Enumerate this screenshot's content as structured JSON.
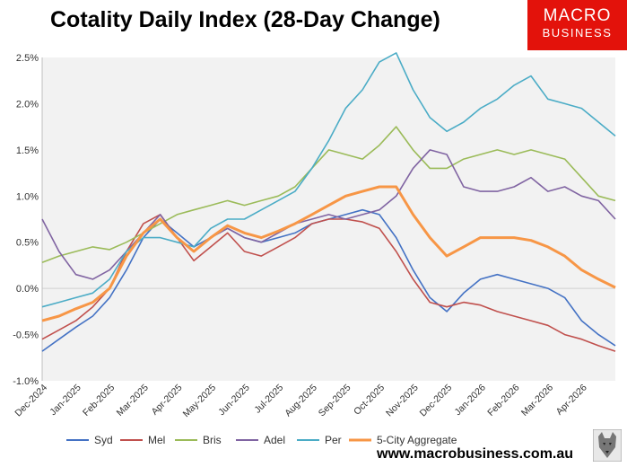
{
  "header": {
    "title": "Cotality Daily Index (28-Day Change)"
  },
  "logo": {
    "line1": "MACRO",
    "line2": "BUSINESS"
  },
  "footer": {
    "url": "www.macrobusiness.com.au"
  },
  "chart_data": {
    "type": "line",
    "title": "Cotality Daily Index (28-Day Change)",
    "xlabel": "",
    "ylabel": "",
    "ylim": [
      -1.0,
      2.5
    ],
    "y_ticks": [
      -1.0,
      -0.5,
      0.0,
      0.5,
      1.0,
      1.5,
      2.0,
      2.5
    ],
    "y_tick_labels": [
      "-1.0%",
      "-0.5%",
      "0.0%",
      "0.5%",
      "1.0%",
      "1.5%",
      "2.0%",
      "2.5%"
    ],
    "x_ticks": [
      "Dec-2024",
      "Jan-2025",
      "Feb-2025",
      "Mar-2025",
      "Apr-2025",
      "May-2025",
      "Jun-2025",
      "Jul-2025",
      "Aug-2025",
      "Sep-2025",
      "Oct-2025",
      "Nov-2025",
      "Dec-2025",
      "Jan-2026",
      "Feb-2026",
      "Mar-2026",
      "Apr-2026"
    ],
    "grid": false,
    "background": "#f2f2f2",
    "legend_position": "bottom",
    "x": [
      "Dec-2024",
      "Dec-2024",
      "Jan-2025",
      "Jan-2025",
      "Feb-2025",
      "Feb-2025",
      "Mar-2025",
      "Mar-2025",
      "Apr-2025",
      "Apr-2025",
      "May-2025",
      "May-2025",
      "Jun-2025",
      "Jun-2025",
      "Jul-2025",
      "Jul-2025",
      "Aug-2025",
      "Aug-2025",
      "Sep-2025",
      "Sep-2025",
      "Oct-2025",
      "Oct-2025",
      "Nov-2025",
      "Nov-2025",
      "Dec-2025",
      "Dec-2025",
      "Jan-2026",
      "Jan-2026",
      "Feb-2026",
      "Feb-2026",
      "Mar-2026",
      "Mar-2026",
      "Apr-2026",
      "Apr-2026",
      "Apr-2026"
    ],
    "series": [
      {
        "name": "Syd",
        "color": "#4472c4",
        "values": [
          -0.68,
          -0.55,
          -0.42,
          -0.3,
          -0.1,
          0.2,
          0.55,
          0.75,
          0.6,
          0.45,
          0.55,
          0.65,
          0.55,
          0.5,
          0.55,
          0.6,
          0.7,
          0.75,
          0.8,
          0.85,
          0.8,
          0.55,
          0.2,
          -0.1,
          -0.25,
          -0.05,
          0.1,
          0.15,
          0.1,
          0.05,
          0.0,
          -0.1,
          -0.35,
          -0.5,
          -0.62
        ]
      },
      {
        "name": "Mel",
        "color": "#c0504d",
        "values": [
          -0.55,
          -0.45,
          -0.35,
          -0.2,
          0.0,
          0.4,
          0.7,
          0.8,
          0.55,
          0.3,
          0.45,
          0.6,
          0.4,
          0.35,
          0.45,
          0.55,
          0.7,
          0.75,
          0.75,
          0.72,
          0.65,
          0.4,
          0.1,
          -0.15,
          -0.2,
          -0.15,
          -0.18,
          -0.25,
          -0.3,
          -0.35,
          -0.4,
          -0.5,
          -0.55,
          -0.62,
          -0.68
        ]
      },
      {
        "name": "Bris",
        "color": "#9bbb59",
        "values": [
          0.28,
          0.35,
          0.4,
          0.45,
          0.42,
          0.5,
          0.6,
          0.7,
          0.8,
          0.85,
          0.9,
          0.95,
          0.9,
          0.95,
          1.0,
          1.1,
          1.3,
          1.5,
          1.45,
          1.4,
          1.55,
          1.75,
          1.5,
          1.3,
          1.3,
          1.4,
          1.45,
          1.5,
          1.45,
          1.5,
          1.45,
          1.4,
          1.2,
          1.0,
          0.95
        ]
      },
      {
        "name": "Adel",
        "color": "#8064a2",
        "values": [
          0.75,
          0.4,
          0.15,
          0.1,
          0.2,
          0.4,
          0.6,
          0.8,
          0.55,
          0.4,
          0.55,
          0.65,
          0.55,
          0.5,
          0.6,
          0.7,
          0.75,
          0.8,
          0.75,
          0.8,
          0.85,
          1.0,
          1.3,
          1.5,
          1.45,
          1.1,
          1.05,
          1.05,
          1.1,
          1.2,
          1.05,
          1.1,
          1.0,
          0.95,
          0.75
        ]
      },
      {
        "name": "Per",
        "color": "#4bacc6",
        "values": [
          -0.2,
          -0.15,
          -0.1,
          -0.05,
          0.1,
          0.4,
          0.55,
          0.55,
          0.5,
          0.45,
          0.65,
          0.75,
          0.75,
          0.85,
          0.95,
          1.05,
          1.3,
          1.6,
          1.95,
          2.15,
          2.45,
          2.55,
          2.15,
          1.85,
          1.7,
          1.8,
          1.95,
          2.05,
          2.2,
          2.3,
          2.05,
          2.0,
          1.95,
          1.8,
          1.65
        ]
      },
      {
        "name": "5-City Aggregate",
        "color": "#f79646",
        "values": [
          -0.35,
          -0.3,
          -0.22,
          -0.15,
          0.0,
          0.35,
          0.6,
          0.75,
          0.55,
          0.4,
          0.55,
          0.68,
          0.6,
          0.55,
          0.62,
          0.7,
          0.8,
          0.9,
          1.0,
          1.05,
          1.1,
          1.1,
          0.8,
          0.55,
          0.35,
          0.45,
          0.55,
          0.55,
          0.55,
          0.52,
          0.45,
          0.35,
          0.2,
          0.1,
          0.01
        ]
      }
    ]
  }
}
